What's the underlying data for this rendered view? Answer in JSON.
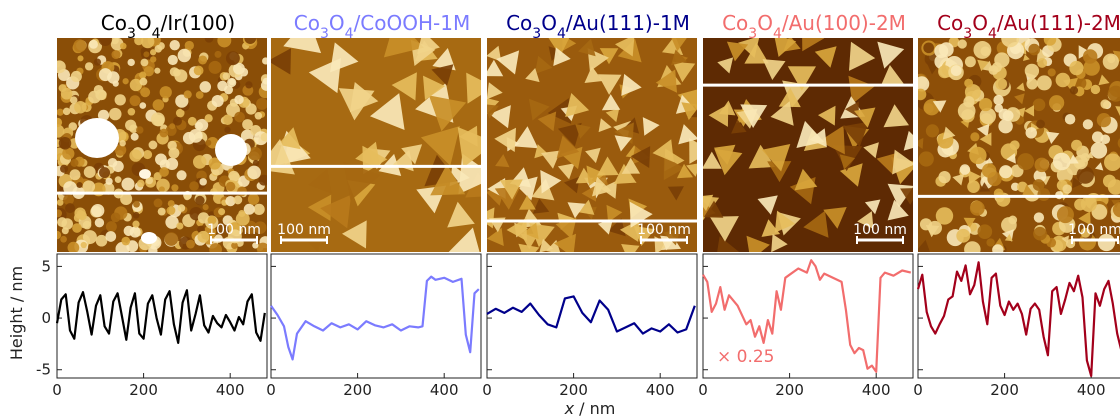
{
  "panels": [
    {
      "title": "Co3O4/Ir(100)",
      "title_parts": [
        [
          "Co",
          ""
        ],
        [
          "3",
          "sub"
        ],
        [
          "O",
          ""
        ],
        [
          "4",
          "sub"
        ],
        [
          "/Ir(100)",
          ""
        ]
      ],
      "color": "#000000",
      "scalebar_label": "100 nm",
      "cut_line": 0.725,
      "image_style": "fine-grain",
      "trace_style": "periodic"
    },
    {
      "title": "Co3O4/CoOOH-1M",
      "title_parts": [
        [
          "Co",
          ""
        ],
        [
          "3",
          "sub"
        ],
        [
          "O",
          ""
        ],
        [
          "4",
          "sub"
        ],
        [
          "/CoOOH-1M",
          ""
        ]
      ],
      "color": "#7b7bff",
      "scalebar_label": "100 nm",
      "cut_line": 0.6,
      "image_style": "triangles-large",
      "trace_style": "step"
    },
    {
      "title": "Co3O4/Au(111)-1M",
      "title_parts": [
        [
          "Co",
          ""
        ],
        [
          "3",
          "sub"
        ],
        [
          "O",
          ""
        ],
        [
          "4",
          "sub"
        ],
        [
          "/Au(111)-1M",
          ""
        ]
      ],
      "color": "#00008b",
      "scalebar_label": "100 nm",
      "cut_line": 0.855,
      "image_style": "triangles-medium",
      "trace_style": "low-wiggle"
    },
    {
      "title": "Co3O4/Au(100)-2M",
      "title_parts": [
        [
          "Co",
          ""
        ],
        [
          "3",
          "sub"
        ],
        [
          "O",
          ""
        ],
        [
          "4",
          "sub"
        ],
        [
          "/Au(100)-2M",
          ""
        ]
      ],
      "color": "#f26d6d",
      "scalebar_label": "100 nm",
      "cut_line": 0.22,
      "image_style": "triangles-dark",
      "trace_style": "plateau",
      "annotation": "× 0.25"
    },
    {
      "title": "Co3O4/Au(111)-2M",
      "title_parts": [
        [
          "Co",
          ""
        ],
        [
          "3",
          "sub"
        ],
        [
          "O",
          ""
        ],
        [
          "4",
          "sub"
        ],
        [
          "/Au(111)-2M",
          ""
        ]
      ],
      "color": "#a3001b",
      "scalebar_label": "100 nm",
      "cut_line": 0.74,
      "image_style": "bright-grain",
      "trace_style": "spiky"
    }
  ],
  "chart_data": {
    "type": "line",
    "xlabel": "x / nm",
    "ylabel": "Height / nm",
    "xlim": [
      0,
      485
    ],
    "ylim": [
      -5.8,
      6.2
    ],
    "xticks": [
      0,
      200,
      400
    ],
    "yticks": [
      5,
      0,
      -5
    ],
    "series": [
      {
        "x": [
          0,
          10,
          20,
          30,
          40,
          50,
          60,
          70,
          80,
          90,
          100,
          110,
          120,
          130,
          140,
          150,
          160,
          170,
          180,
          190,
          200,
          210,
          220,
          230,
          240,
          250,
          260,
          270,
          280,
          290,
          300,
          310,
          320,
          330,
          340,
          350,
          360,
          370,
          380,
          390,
          400,
          410,
          420,
          430,
          440,
          450,
          460,
          470,
          480
        ],
        "y": [
          -0.5,
          1.8,
          2.3,
          -1.2,
          -2.0,
          1.5,
          2.5,
          0.6,
          -1.6,
          1.2,
          2.2,
          -0.8,
          -1.5,
          1.6,
          2.4,
          0.2,
          -2.1,
          1.0,
          2.4,
          -1.5,
          -2.0,
          1.4,
          2.2,
          0.0,
          -1.6,
          1.8,
          2.6,
          -0.6,
          -2.4,
          1.5,
          2.7,
          -1.2,
          0.4,
          2.2,
          -0.7,
          -1.4,
          0.2,
          -0.5,
          -0.9,
          0.3,
          -0.4,
          -1.2,
          0.1,
          -0.6,
          1.6,
          2.3,
          -1.4,
          -2.2,
          0.5
        ]
      },
      {
        "x": [
          0,
          15,
          30,
          40,
          50,
          60,
          80,
          100,
          120,
          140,
          160,
          180,
          200,
          220,
          240,
          260,
          280,
          300,
          320,
          340,
          350,
          360,
          370,
          380,
          400,
          420,
          440,
          450,
          460,
          470,
          480
        ],
        "y": [
          1.2,
          0.3,
          -0.8,
          -2.8,
          -4.0,
          -1.5,
          -0.3,
          -0.8,
          -1.2,
          -0.5,
          -0.9,
          -0.6,
          -1.1,
          -0.3,
          -0.7,
          -0.9,
          -0.6,
          -1.2,
          -0.8,
          -0.9,
          -0.8,
          3.6,
          4.0,
          3.7,
          3.9,
          3.5,
          3.8,
          -1.6,
          -3.3,
          2.4,
          2.8
        ]
      },
      {
        "x": [
          0,
          20,
          40,
          60,
          80,
          100,
          120,
          140,
          160,
          180,
          200,
          220,
          240,
          260,
          280,
          300,
          320,
          340,
          360,
          380,
          400,
          420,
          440,
          460,
          480
        ],
        "y": [
          0.4,
          0.9,
          0.5,
          1.0,
          0.6,
          1.4,
          0.3,
          -0.6,
          -0.9,
          1.9,
          2.1,
          0.5,
          -0.4,
          1.7,
          0.8,
          -1.3,
          -0.9,
          -0.5,
          -1.5,
          -1.0,
          -1.3,
          -0.6,
          -1.4,
          -1.1,
          1.2
        ]
      },
      {
        "x": [
          0,
          10,
          20,
          30,
          40,
          50,
          60,
          80,
          100,
          110,
          120,
          130,
          140,
          150,
          160,
          170,
          180,
          190,
          200,
          220,
          240,
          250,
          260,
          270,
          280,
          300,
          320,
          330,
          340,
          350,
          360,
          370,
          380,
          390,
          400,
          410,
          420,
          440,
          460,
          480
        ],
        "y": [
          4.2,
          3.5,
          0.6,
          1.4,
          3.0,
          0.8,
          2.2,
          1.2,
          -0.6,
          -0.2,
          -1.8,
          -0.8,
          -2.4,
          -0.2,
          -1.5,
          2.6,
          0.8,
          3.9,
          4.2,
          4.8,
          4.4,
          5.6,
          5.0,
          3.7,
          4.3,
          3.9,
          3.5,
          0.8,
          -2.6,
          -3.4,
          -2.9,
          -3.1,
          -4.9,
          -4.6,
          -5.2,
          3.9,
          4.4,
          4.1,
          4.6,
          4.4
        ]
      },
      {
        "x": [
          0,
          10,
          20,
          30,
          40,
          50,
          60,
          70,
          80,
          90,
          100,
          110,
          120,
          130,
          140,
          150,
          160,
          170,
          180,
          190,
          200,
          210,
          220,
          230,
          240,
          250,
          260,
          270,
          280,
          290,
          300,
          310,
          320,
          330,
          340,
          350,
          360,
          370,
          380,
          390,
          400,
          410,
          420,
          430,
          440,
          450,
          460,
          470,
          480
        ],
        "y": [
          2.8,
          4.2,
          0.6,
          -0.8,
          -1.5,
          -0.6,
          0.2,
          1.8,
          2.1,
          4.5,
          3.6,
          5.1,
          2.3,
          3.2,
          5.4,
          1.6,
          -0.6,
          3.9,
          4.3,
          1.2,
          0.3,
          1.6,
          0.8,
          1.4,
          0.4,
          -1.6,
          0.9,
          1.4,
          0.8,
          -1.8,
          -3.6,
          2.6,
          3.0,
          0.4,
          1.8,
          3.4,
          2.6,
          4.1,
          2.0,
          -4.1,
          -5.6,
          2.4,
          1.2,
          2.8,
          3.6,
          1.4,
          -1.5,
          -3.2,
          1.0
        ]
      }
    ]
  }
}
